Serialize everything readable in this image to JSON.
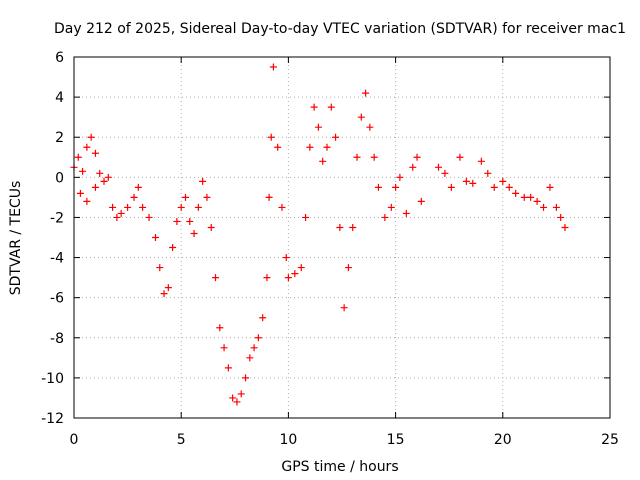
{
  "chart_data": {
    "type": "scatter",
    "title": "Day 212 of 2025, Sidereal Day-to-day VTEC variation (SDTVAR) for receiver mac1",
    "xlabel": "GPS time / hours",
    "ylabel": "SDTVAR / TECUs",
    "xlim": [
      0,
      25
    ],
    "ylim": [
      -12,
      6
    ],
    "xticks": [
      0,
      5,
      10,
      15,
      20,
      25
    ],
    "yticks": [
      -12,
      -10,
      -8,
      -6,
      -4,
      -2,
      0,
      2,
      4,
      6
    ],
    "grid": true,
    "marker": "+",
    "series": [
      {
        "name": "SDTVAR",
        "color": "#ff0000",
        "points": [
          [
            0.0,
            0.5
          ],
          [
            0.2,
            1.0
          ],
          [
            0.4,
            0.3
          ],
          [
            0.6,
            1.5
          ],
          [
            0.8,
            2.0
          ],
          [
            1.0,
            1.2
          ],
          [
            1.2,
            0.2
          ],
          [
            0.3,
            -0.8
          ],
          [
            0.6,
            -1.2
          ],
          [
            1.0,
            -0.5
          ],
          [
            1.4,
            -0.2
          ],
          [
            1.6,
            0.0
          ],
          [
            1.8,
            -1.5
          ],
          [
            2.0,
            -2.0
          ],
          [
            2.2,
            -1.8
          ],
          [
            2.5,
            -1.5
          ],
          [
            2.8,
            -1.0
          ],
          [
            3.0,
            -0.5
          ],
          [
            3.2,
            -1.5
          ],
          [
            3.5,
            -2.0
          ],
          [
            3.8,
            -3.0
          ],
          [
            4.0,
            -4.5
          ],
          [
            4.2,
            -5.8
          ],
          [
            4.4,
            -5.5
          ],
          [
            4.6,
            -3.5
          ],
          [
            4.8,
            -2.2
          ],
          [
            5.0,
            -1.5
          ],
          [
            5.2,
            -1.0
          ],
          [
            5.4,
            -2.2
          ],
          [
            5.6,
            -2.8
          ],
          [
            5.8,
            -1.5
          ],
          [
            6.0,
            -0.2
          ],
          [
            6.2,
            -1.0
          ],
          [
            6.4,
            -2.5
          ],
          [
            6.6,
            -5.0
          ],
          [
            6.8,
            -7.5
          ],
          [
            7.0,
            -8.5
          ],
          [
            7.2,
            -9.5
          ],
          [
            7.4,
            -11.0
          ],
          [
            7.6,
            -11.2
          ],
          [
            7.8,
            -10.8
          ],
          [
            8.0,
            -10.0
          ],
          [
            8.2,
            -9.0
          ],
          [
            8.4,
            -8.5
          ],
          [
            8.6,
            -8.0
          ],
          [
            8.8,
            -7.0
          ],
          [
            9.0,
            -5.0
          ],
          [
            9.1,
            -1.0
          ],
          [
            9.2,
            2.0
          ],
          [
            9.3,
            5.5
          ],
          [
            9.5,
            1.5
          ],
          [
            9.7,
            -1.5
          ],
          [
            9.9,
            -4.0
          ],
          [
            10.0,
            -5.0
          ],
          [
            10.3,
            -4.8
          ],
          [
            10.6,
            -4.5
          ],
          [
            10.8,
            -2.0
          ],
          [
            11.0,
            1.5
          ],
          [
            11.2,
            3.5
          ],
          [
            11.4,
            2.5
          ],
          [
            11.6,
            0.8
          ],
          [
            11.8,
            1.5
          ],
          [
            12.0,
            3.5
          ],
          [
            12.2,
            2.0
          ],
          [
            12.4,
            -2.5
          ],
          [
            12.6,
            -6.5
          ],
          [
            12.8,
            -4.5
          ],
          [
            13.0,
            -2.5
          ],
          [
            13.2,
            1.0
          ],
          [
            13.4,
            3.0
          ],
          [
            13.6,
            4.2
          ],
          [
            13.8,
            2.5
          ],
          [
            14.0,
            1.0
          ],
          [
            14.2,
            -0.5
          ],
          [
            14.5,
            -2.0
          ],
          [
            14.8,
            -1.5
          ],
          [
            15.0,
            -0.5
          ],
          [
            15.2,
            0.0
          ],
          [
            15.5,
            -1.8
          ],
          [
            15.8,
            0.5
          ],
          [
            16.0,
            1.0
          ],
          [
            16.2,
            -1.2
          ],
          [
            17.0,
            0.5
          ],
          [
            17.3,
            0.2
          ],
          [
            17.6,
            -0.5
          ],
          [
            18.0,
            1.0
          ],
          [
            18.3,
            -0.2
          ],
          [
            18.6,
            -0.3
          ],
          [
            19.0,
            0.8
          ],
          [
            19.3,
            0.2
          ],
          [
            19.6,
            -0.5
          ],
          [
            20.0,
            -0.2
          ],
          [
            20.3,
            -0.5
          ],
          [
            20.6,
            -0.8
          ],
          [
            21.0,
            -1.0
          ],
          [
            21.3,
            -1.0
          ],
          [
            21.6,
            -1.2
          ],
          [
            21.9,
            -1.5
          ],
          [
            22.2,
            -0.5
          ],
          [
            22.5,
            -1.5
          ],
          [
            22.7,
            -2.0
          ],
          [
            22.9,
            -2.5
          ]
        ]
      }
    ]
  }
}
